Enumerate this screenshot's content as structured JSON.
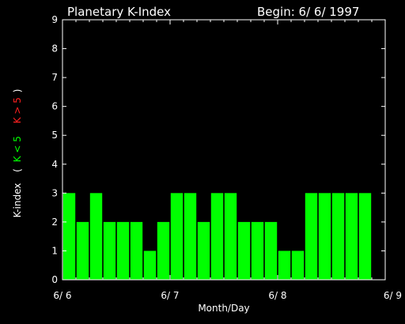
{
  "chart_data": {
    "type": "bar",
    "title": "Planetary K-Index",
    "begin_label": "Begin: 6/ 6/ 1997",
    "xlabel": "Month/Day",
    "ylabel": {
      "prefix": "K-index",
      "open": "(",
      "low": "K < 5",
      "high": "K > 5",
      "close": ")"
    },
    "x_ticks": [
      "6/ 6",
      "6/ 7",
      "6/ 8",
      "6/ 9"
    ],
    "y_ticks": [
      "0",
      "1",
      "2",
      "3",
      "4",
      "5",
      "6",
      "7",
      "8",
      "9"
    ],
    "ylim": [
      0,
      9
    ],
    "x_range_days": [
      0,
      3
    ],
    "bar_width_days": 0.125,
    "values": [
      3,
      2,
      3,
      2,
      2,
      2,
      1,
      2,
      3,
      3,
      2,
      3,
      3,
      2,
      2,
      2,
      1,
      1,
      3,
      3,
      3,
      3,
      3
    ],
    "colors": {
      "low": "#00ff00",
      "high": "#ff0000",
      "axis": "#ffffff",
      "background": "#000000"
    }
  }
}
